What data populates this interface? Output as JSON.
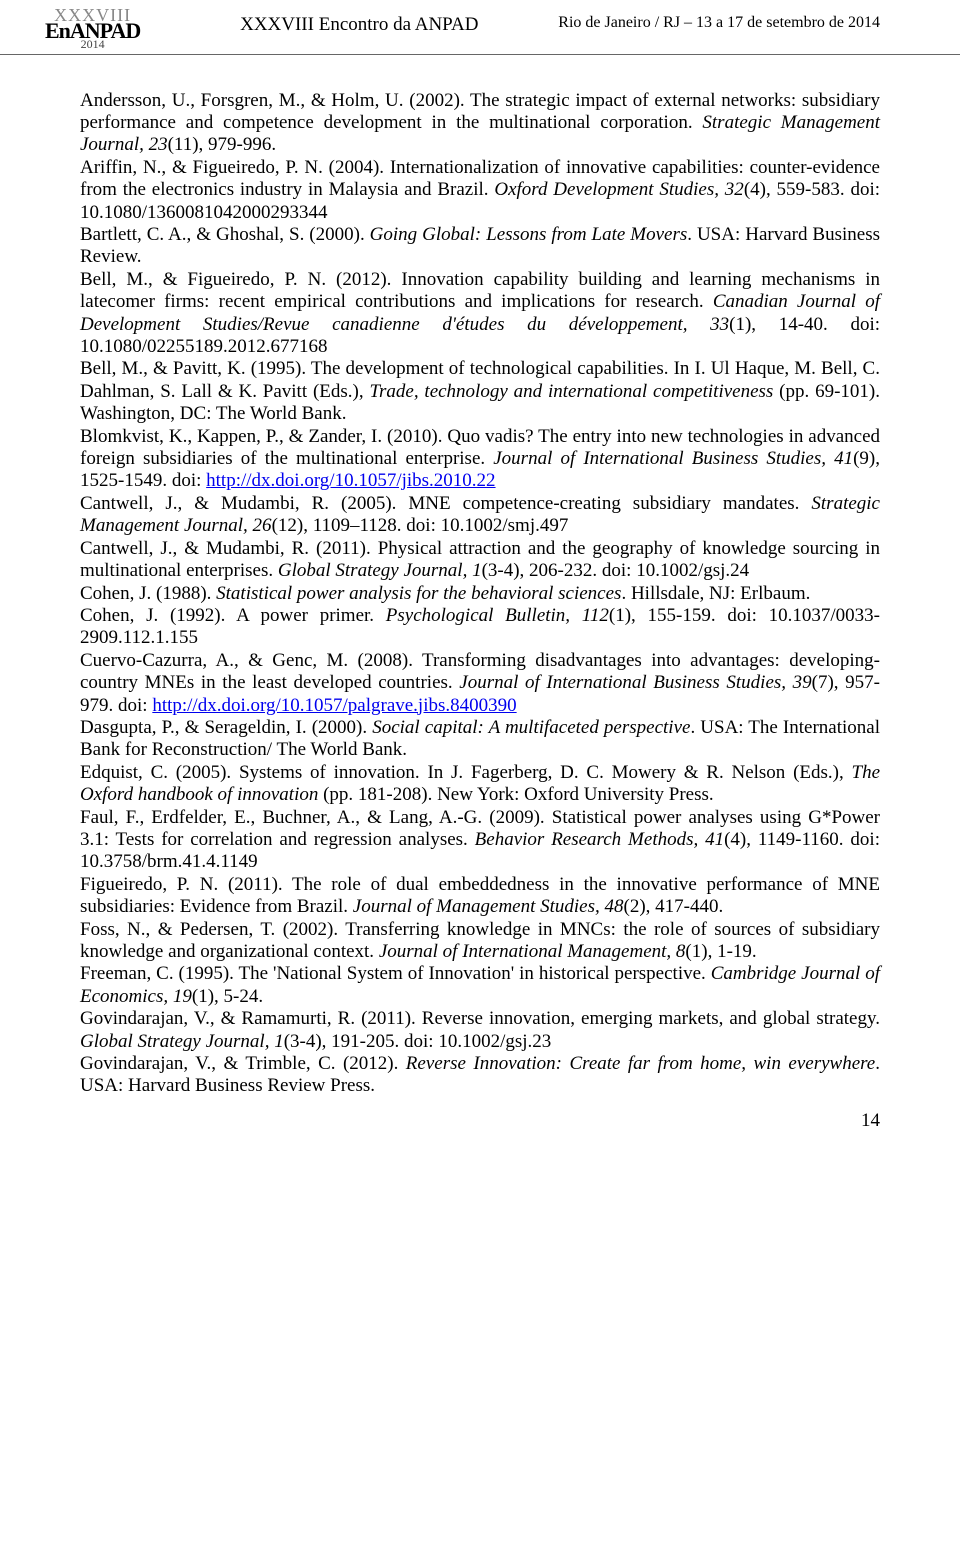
{
  "header": {
    "logo_top": "XXXVIII",
    "logo_mid": "EnANPAD",
    "logo_year": "2014",
    "center": "XXXVIII Encontro da ANPAD",
    "right": "Rio de Janeiro / RJ – 13 a 17 de setembro de 2014"
  },
  "references": [
    {
      "plain1": "Andersson, U., Forsgren, M., & Holm, U. (2002). The strategic impact of external networks: subsidiary performance and competence development in the multinational corporation. ",
      "italic1": "Strategic Management Journal, 23",
      "plain2": "(11), 979-996."
    },
    {
      "plain1": "Ariffin, N., & Figueiredo, P. N. (2004). Internationalization of innovative capabilities: counter-evidence from the electronics industry in Malaysia and Brazil. ",
      "italic1": "Oxford Development Studies, 32",
      "plain2": "(4), 559-583. doi: 10.1080/1360081042000293344"
    },
    {
      "plain1": "Bartlett, C. A., & Ghoshal, S. (2000). ",
      "italic1": "Going Global: Lessons from Late Movers",
      "plain2": ". USA: Harvard Business Review."
    },
    {
      "plain1": "Bell, M., & Figueiredo, P. N. (2012). Innovation capability building and learning mechanisms in latecomer firms: recent empirical contributions and implications for research. ",
      "italic1": "Canadian Journal of Development Studies/Revue canadienne d'études du développement, 33",
      "plain2": "(1), 14-40. doi: 10.1080/02255189.2012.677168"
    },
    {
      "plain1": "Bell, M., & Pavitt, K. (1995). The development of technological capabilities. In I. Ul Haque, M. Bell, C. Dahlman, S. Lall & K. Pavitt (Eds.), ",
      "italic1": "Trade, technology and international competitiveness",
      "plain2": " (pp. 69-101). Washington, DC: The World Bank."
    },
    {
      "plain1": "Blomkvist, K., Kappen, P., & Zander, I. (2010). Quo vadis? The entry into new technologies in advanced foreign subsidiaries of the multinational enterprise. ",
      "italic1": "Journal of International Business Studies, 41",
      "plain2": "(9), 1525-1549. doi: ",
      "link": "http://dx.doi.org/10.1057/jibs.2010.22"
    },
    {
      "plain1": "Cantwell, J., & Mudambi, R. (2005). MNE competence-creating subsidiary mandates. ",
      "italic1": "Strategic Management Journal, 26",
      "plain2": "(12), 1109–1128. doi: 10.1002/smj.497"
    },
    {
      "plain1": "Cantwell, J., & Mudambi, R. (2011). Physical attraction and the geography of knowledge sourcing in multinational enterprises. ",
      "italic1": "Global Strategy Journal, 1",
      "plain2": "(3-4), 206-232. doi: 10.1002/gsj.24"
    },
    {
      "plain1": "Cohen, J. (1988). ",
      "italic1": "Statistical power analysis for the behavioral sciences",
      "plain2": ". Hillsdale, NJ: Erlbaum."
    },
    {
      "plain1": "Cohen, J. (1992). A power primer. ",
      "italic1": "Psychological Bulletin, 112",
      "plain2": "(1), 155-159. doi: 10.1037/0033-2909.112.1.155"
    },
    {
      "plain1": "Cuervo-Cazurra, A., & Genc, M. (2008). Transforming disadvantages into advantages: developing-country MNEs in the least developed countries. ",
      "italic1": "Journal of International Business Studies, 39",
      "plain2": "(7), 957-979. doi: ",
      "link": "http://dx.doi.org/10.1057/palgrave.jibs.8400390"
    },
    {
      "plain1": "Dasgupta, P., & Serageldin, I. (2000). ",
      "italic1": "Social capital: A multifaceted perspective",
      "plain2": ". USA: The International Bank for Reconstruction/ The World Bank."
    },
    {
      "plain1": "Edquist, C. (2005). Systems of innovation. In J. Fagerberg, D. C. Mowery & R. Nelson (Eds.), ",
      "italic1": "The Oxford handbook of innovation",
      "plain2": " (pp. 181-208). New York: Oxford University Press."
    },
    {
      "plain1": "Faul, F., Erdfelder, E., Buchner, A., & Lang, A.-G. (2009). Statistical power analyses using G*Power 3.1: Tests for correlation and regression analyses. ",
      "italic1": "Behavior Research Methods, 41",
      "plain2": "(4), 1149-1160. doi: 10.3758/brm.41.4.1149"
    },
    {
      "plain1": "Figueiredo, P. N. (2011). The role of dual embeddedness in the innovative performance of MNE subsidiaries: Evidence from Brazil. ",
      "italic1": "Journal of Management Studies, 48",
      "plain2": "(2), 417-440."
    },
    {
      "plain1": "Foss, N., & Pedersen, T. (2002). Transferring knowledge in MNCs: the role of sources of subsidiary knowledge and organizational context. ",
      "italic1": "Journal of International Management, 8",
      "plain2": "(1), 1-19."
    },
    {
      "plain1": "Freeman, C. (1995). The 'National System of Innovation' in historical perspective. ",
      "italic1": "Cambridge Journal of Economics, 19",
      "plain2": "(1), 5-24."
    },
    {
      "plain1": "Govindarajan, V., & Ramamurti, R. (2011). Reverse innovation, emerging markets, and global strategy. ",
      "italic1": "Global Strategy Journal, 1",
      "plain2": "(3-4), 191-205. doi: 10.1002/gsj.23"
    },
    {
      "plain1": "Govindarajan, V., & Trimble, C. (2012). ",
      "italic1": "Reverse Innovation: Create far from home, win everywhere",
      "plain2": ". USA: Harvard Business Review Press."
    }
  ],
  "page_number": "14"
}
